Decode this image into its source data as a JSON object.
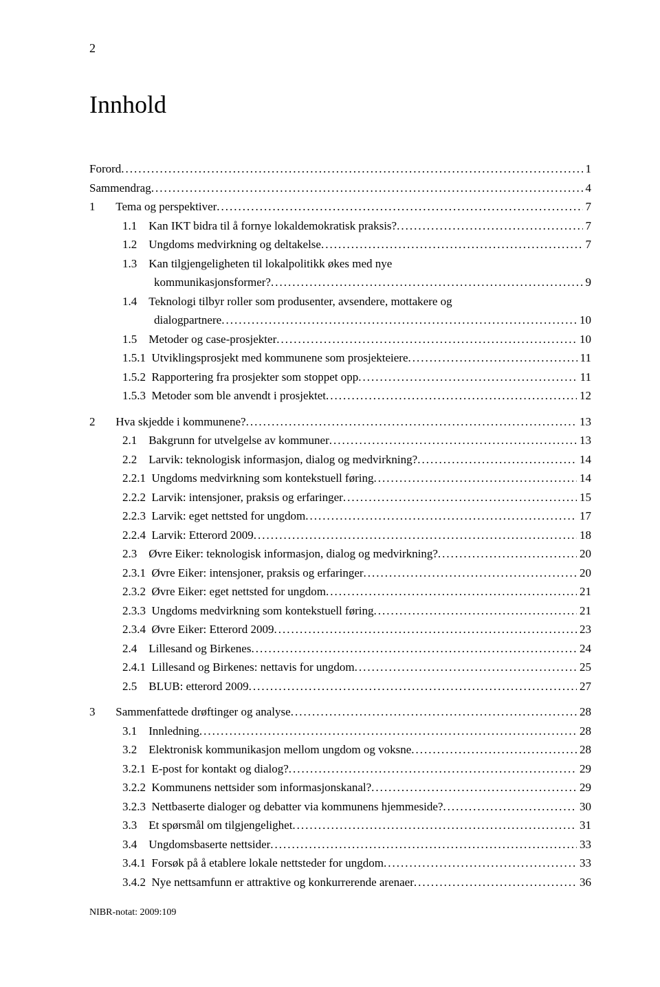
{
  "page_number_top": "2",
  "title": "Innhold",
  "footer": "NIBR-notat: 2009:109",
  "toc": [
    {
      "type": "line",
      "indent": 0,
      "num": "",
      "label": "Forord",
      "page": "1"
    },
    {
      "type": "line",
      "indent": 0,
      "num": "",
      "label": "Sammendrag",
      "page": "4"
    },
    {
      "type": "line",
      "indent": 1,
      "num": "1",
      "label": "Tema og perspektiver",
      "page": "7"
    },
    {
      "type": "line",
      "indent": 2,
      "num": "1.1",
      "label": "Kan IKT bidra til å fornye lokaldemokratisk praksis?",
      "page": "7"
    },
    {
      "type": "line",
      "indent": 2,
      "num": "1.2",
      "label": "Ungdoms medvirkning og deltakelse",
      "page": "7"
    },
    {
      "type": "line",
      "indent": 2,
      "num": "1.3",
      "label": "Kan tilgjengeligheten til lokalpolitikk økes med nye",
      "page": ""
    },
    {
      "type": "cont",
      "indent": 2,
      "label": "kommunikasjonsformer?",
      "page": "9"
    },
    {
      "type": "line",
      "indent": 2,
      "num": "1.4",
      "label": "Teknologi tilbyr roller som produsenter, avsendere, mottakere og",
      "page": ""
    },
    {
      "type": "cont",
      "indent": 2,
      "label": "dialogpartnere",
      "page": "10"
    },
    {
      "type": "line",
      "indent": 2,
      "num": "1.5",
      "label": "Metoder og case-prosjekter",
      "page": "10"
    },
    {
      "type": "line",
      "indent": 3,
      "num": "1.5.1",
      "label": "Utviklingsprosjekt med kommunene som prosjekteiere",
      "page": "11"
    },
    {
      "type": "line",
      "indent": 3,
      "num": "1.5.2",
      "label": "Rapportering fra prosjekter som stoppet opp",
      "page": "11"
    },
    {
      "type": "line",
      "indent": 3,
      "num": "1.5.3",
      "label": "Metoder som ble anvendt i prosjektet",
      "page": "12"
    },
    {
      "type": "gap"
    },
    {
      "type": "line",
      "indent": 1,
      "num": "2",
      "label": "Hva skjedde i kommunene?",
      "page": "13"
    },
    {
      "type": "line",
      "indent": 2,
      "num": "2.1",
      "label": "Bakgrunn for utvelgelse av kommuner",
      "page": "13"
    },
    {
      "type": "line",
      "indent": 2,
      "num": "2.2",
      "label": "Larvik: teknologisk informasjon, dialog og medvirkning?",
      "page": "14"
    },
    {
      "type": "line",
      "indent": 3,
      "num": "2.2.1",
      "label": "Ungdoms medvirkning som kontekstuell føring",
      "page": "14"
    },
    {
      "type": "line",
      "indent": 3,
      "num": "2.2.2",
      "label": "Larvik: intensjoner, praksis og erfaringer",
      "page": "15"
    },
    {
      "type": "line",
      "indent": 3,
      "num": "2.2.3",
      "label": "Larvik: eget nettsted for ungdom",
      "page": "17"
    },
    {
      "type": "line",
      "indent": 3,
      "num": "2.2.4",
      "label": "Larvik: Etterord 2009",
      "page": "18"
    },
    {
      "type": "line",
      "indent": 2,
      "num": "2.3",
      "label": "Øvre Eiker: teknologisk informasjon, dialog og medvirkning?",
      "page": "20"
    },
    {
      "type": "line",
      "indent": 3,
      "num": "2.3.1",
      "label": "Øvre Eiker: intensjoner, praksis og erfaringer",
      "page": "20"
    },
    {
      "type": "line",
      "indent": 3,
      "num": "2.3.2",
      "label": "Øvre Eiker: eget nettsted for ungdom",
      "page": "21"
    },
    {
      "type": "line",
      "indent": 3,
      "num": "2.3.3",
      "label": "Ungdoms medvirkning som kontekstuell føring",
      "page": "21"
    },
    {
      "type": "line",
      "indent": 3,
      "num": "2.3.4",
      "label": "Øvre Eiker: Etterord 2009",
      "page": "23"
    },
    {
      "type": "line",
      "indent": 2,
      "num": "2.4",
      "label": "Lillesand og Birkenes",
      "page": "24"
    },
    {
      "type": "line",
      "indent": 3,
      "num": "2.4.1",
      "label": "Lillesand og Birkenes: nettavis for ungdom",
      "page": "25"
    },
    {
      "type": "line",
      "indent": 2,
      "num": "2.5",
      "label": "BLUB: etterord 2009",
      "page": "27"
    },
    {
      "type": "gap"
    },
    {
      "type": "line",
      "indent": 1,
      "num": "3",
      "label": "Sammenfattede drøftinger og analyse",
      "page": "28"
    },
    {
      "type": "line",
      "indent": 2,
      "num": "3.1",
      "label": "Innledning",
      "page": "28"
    },
    {
      "type": "line",
      "indent": 2,
      "num": "3.2",
      "label": "Elektronisk kommunikasjon mellom ungdom og voksne",
      "page": "28"
    },
    {
      "type": "line",
      "indent": 3,
      "num": "3.2.1",
      "label": "E-post for kontakt og dialog?",
      "page": "29"
    },
    {
      "type": "line",
      "indent": 3,
      "num": "3.2.2",
      "label": "Kommunens nettsider som informasjonskanal?",
      "page": "29"
    },
    {
      "type": "line",
      "indent": 3,
      "num": "3.2.3",
      "label": "Nettbaserte dialoger og debatter via kommunens hjemmeside?",
      "page": "30"
    },
    {
      "type": "line",
      "indent": 2,
      "num": "3.3",
      "label": "Et spørsmål om tilgjengelighet",
      "page": "31"
    },
    {
      "type": "line",
      "indent": 2,
      "num": "3.4",
      "label": "Ungdomsbaserte nettsider",
      "page": "33"
    },
    {
      "type": "line",
      "indent": 3,
      "num": "3.4.1",
      "label": "Forsøk på å etablere lokale nettsteder for ungdom",
      "page": "33"
    },
    {
      "type": "line",
      "indent": 3,
      "num": "3.4.2",
      "label": "Nye nettsamfunn er attraktive og konkurrerende arenaer",
      "page": "36"
    }
  ],
  "layout": {
    "num_widths": {
      "indent0": 0,
      "indent1": 48,
      "indent2": 46,
      "indent3": 46
    },
    "dots_char": "."
  }
}
